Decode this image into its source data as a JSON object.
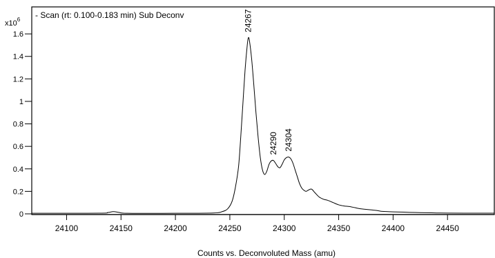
{
  "chart_data": {
    "type": "line",
    "title": "- Scan (rt: 0.100-0.183 min)  Sub Deconv",
    "y_multiplier_base": "x10",
    "y_multiplier_exp": "6",
    "xlabel": "Counts vs. Deconvoluted Mass (amu)",
    "ylabel": "",
    "xlim": [
      24068,
      24493
    ],
    "ylim": [
      0,
      1.84
    ],
    "x_ticks": [
      24100,
      24150,
      24200,
      24250,
      24300,
      24350,
      24400,
      24450
    ],
    "x_tick_labels": [
      "24100",
      "24150",
      "24200",
      "24250",
      "24300",
      "24350",
      "24400",
      "24450"
    ],
    "y_ticks": [
      0,
      0.2,
      0.4,
      0.6,
      0.8,
      1,
      1.2,
      1.4,
      1.6
    ],
    "y_tick_labels": [
      "0",
      "0.2",
      "0.4",
      "0.6",
      "0.8",
      "1",
      "1.2",
      "1.4",
      "1.6"
    ],
    "grid": false,
    "series": [
      {
        "x": [
          24068,
          24130,
          24138,
          24143,
          24148,
          24156,
          24200,
          24235,
          24243,
          24248,
          24252,
          24255,
          24258,
          24260,
          24262,
          24264,
          24266,
          24267,
          24268,
          24270,
          24272,
          24274,
          24276,
          24278,
          24280,
          24282,
          24284,
          24286,
          24288,
          24290,
          24292,
          24294,
          24296,
          24298,
          24300,
          24302,
          24304,
          24306,
          24308,
          24310,
          24312,
          24314,
          24316,
          24318,
          24320,
          24322,
          24325,
          24328,
          24332,
          24336,
          24340,
          24345,
          24350,
          24355,
          24360,
          24365,
          24370,
          24375,
          24380,
          24385,
          24390,
          24395,
          24400,
          24410,
          24420,
          24430,
          24440,
          24450,
          24470,
          24493
        ],
        "y": [
          0.005,
          0.006,
          0.012,
          0.02,
          0.013,
          0.005,
          0.005,
          0.008,
          0.02,
          0.045,
          0.11,
          0.23,
          0.42,
          0.68,
          0.98,
          1.28,
          1.5,
          1.565,
          1.54,
          1.38,
          1.15,
          0.9,
          0.68,
          0.5,
          0.39,
          0.35,
          0.38,
          0.44,
          0.47,
          0.475,
          0.45,
          0.42,
          0.41,
          0.44,
          0.48,
          0.5,
          0.505,
          0.49,
          0.45,
          0.39,
          0.33,
          0.27,
          0.23,
          0.21,
          0.2,
          0.21,
          0.22,
          0.19,
          0.15,
          0.13,
          0.12,
          0.1,
          0.08,
          0.07,
          0.065,
          0.055,
          0.045,
          0.04,
          0.035,
          0.03,
          0.022,
          0.02,
          0.018,
          0.015,
          0.012,
          0.01,
          0.008,
          0.007,
          0.006,
          0.006
        ]
      }
    ],
    "peak_labels": [
      {
        "x": 24267,
        "y": 1.565,
        "text": "24267"
      },
      {
        "x": 24290,
        "y": 0.475,
        "text": "24290"
      },
      {
        "x": 24304,
        "y": 0.505,
        "text": "24304"
      }
    ],
    "colors": {
      "line": "#000000",
      "axis": "#000000",
      "background": "#ffffff"
    }
  }
}
